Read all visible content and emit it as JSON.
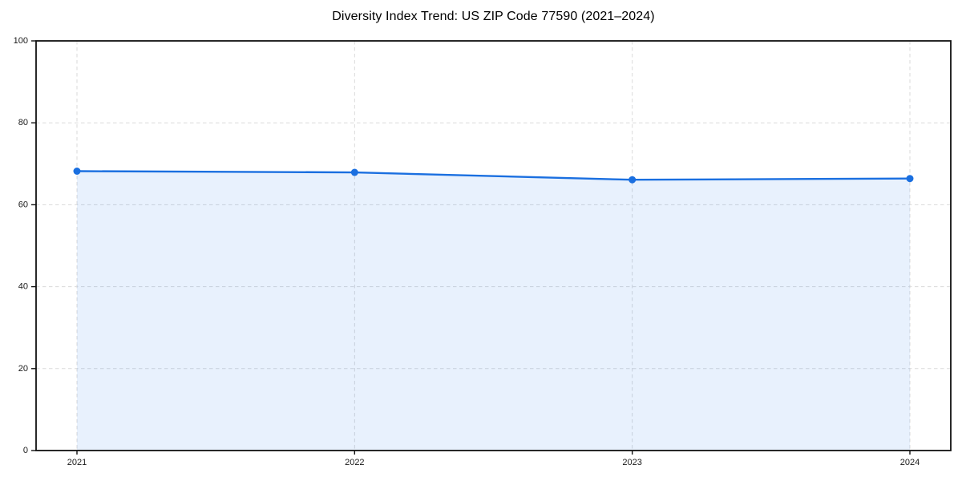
{
  "chart_data": {
    "type": "area",
    "title": "Diversity Index Trend: US ZIP Code 77590 (2021–2024)",
    "categories": [
      "2021",
      "2022",
      "2023",
      "2024"
    ],
    "series": [
      {
        "name": "Diversity Index",
        "values": [
          68.2,
          67.9,
          66.1,
          66.4
        ]
      }
    ],
    "xlabel": "",
    "ylabel": "",
    "ylim": [
      0,
      100
    ],
    "yticks": [
      0,
      20,
      40,
      60,
      80,
      100
    ],
    "grid": true,
    "grid_style": "dashed",
    "legend": false,
    "colors": {
      "line": "#1a6fe0",
      "marker": "#1a6fe0",
      "fill": "rgba(26,115,232,0.10)",
      "grid": "#dadada",
      "axis": "#111111",
      "tick_label": "#1a1a1a",
      "title": "#000000",
      "background": "#ffffff"
    }
  }
}
